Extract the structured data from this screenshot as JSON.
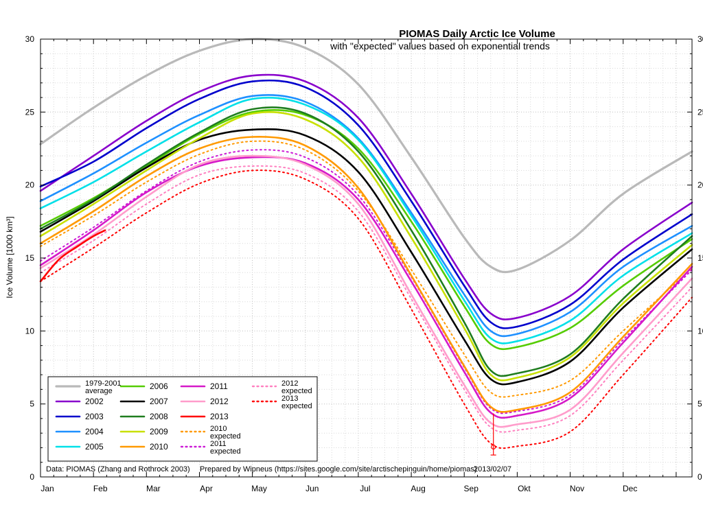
{
  "title": "PIOMAS Daily Arctic Ice Volume",
  "subtitle": "with \"expected\" values based on exponential trends",
  "footer": {
    "left": "Data: PIOMAS (Zhang and Rothrock 2003)",
    "center": "Prepared by Wipneus (https://sites.google.com/site/arctischepinguin/home/piomas)",
    "right": "2013/02/07"
  },
  "chart_data": {
    "type": "line",
    "title": "PIOMAS Daily Arctic Ice Volume",
    "subtitle": "with \"expected\" values based on exponential trends",
    "xlabel": "",
    "ylabel": "Ice Volume [1000 km³]",
    "ylim": [
      0,
      30
    ],
    "y_ticks": [
      0,
      5,
      10,
      15,
      20,
      25,
      30
    ],
    "grid": true,
    "legend_position": "inside bottom-left",
    "x_months": [
      "Jan",
      "Feb",
      "Mar",
      "Apr",
      "May",
      "Jun",
      "Jul",
      "Aug",
      "Sep",
      "Okt",
      "Nov",
      "Dec"
    ],
    "x": [
      0,
      1,
      2,
      3,
      4,
      5,
      6,
      7,
      8,
      8.5,
      9,
      10,
      11,
      12.3
    ],
    "series": [
      {
        "name": "1979-2001 average",
        "legend_lines": [
          "1979-2001",
          "average"
        ],
        "color": "#b9b9b9",
        "style": "solid",
        "width": 3.2,
        "values": [
          22.8,
          25.3,
          27.5,
          29.2,
          30.0,
          29.4,
          26.9,
          21.9,
          16.4,
          14.4,
          14.2,
          16.2,
          19.4,
          22.3
        ]
      },
      {
        "name": "2002",
        "legend_lines": [
          "2002"
        ],
        "color": "#8800cc",
        "style": "solid",
        "width": 2.6,
        "values": [
          19.6,
          22.0,
          24.4,
          26.4,
          27.5,
          27.1,
          24.6,
          19.4,
          13.6,
          11.2,
          10.9,
          12.4,
          15.6,
          18.8
        ]
      },
      {
        "name": "2003",
        "legend_lines": [
          "2003"
        ],
        "color": "#0000cc",
        "style": "solid",
        "width": 2.6,
        "values": [
          19.9,
          21.6,
          23.9,
          25.9,
          27.1,
          26.7,
          24.1,
          18.9,
          13.1,
          10.6,
          10.3,
          11.8,
          14.9,
          18.0
        ]
      },
      {
        "name": "2004",
        "legend_lines": [
          "2004"
        ],
        "color": "#1e90ff",
        "style": "solid",
        "width": 2.6,
        "values": [
          18.9,
          20.8,
          22.9,
          24.8,
          26.1,
          25.7,
          23.2,
          18.1,
          12.5,
          10.0,
          9.8,
          11.3,
          14.4,
          17.2
        ]
      },
      {
        "name": "2005",
        "legend_lines": [
          "2005"
        ],
        "color": "#00e0e8",
        "style": "solid",
        "width": 2.6,
        "values": [
          18.4,
          20.2,
          22.3,
          24.3,
          25.9,
          25.5,
          23.1,
          17.9,
          12.1,
          9.5,
          9.3,
          10.7,
          13.8,
          16.7
        ]
      },
      {
        "name": "2006",
        "legend_lines": [
          "2006"
        ],
        "color": "#55cc00",
        "style": "solid",
        "width": 2.6,
        "values": [
          17.2,
          19.1,
          21.3,
          23.5,
          25.0,
          24.8,
          22.5,
          17.5,
          11.7,
          9.1,
          8.9,
          10.2,
          13.1,
          16.3
        ]
      },
      {
        "name": "2007",
        "legend_lines": [
          "2007"
        ],
        "color": "#000000",
        "style": "solid",
        "width": 2.6,
        "values": [
          16.8,
          18.9,
          21.2,
          23.1,
          23.8,
          23.4,
          20.9,
          15.4,
          9.4,
          6.7,
          6.5,
          7.9,
          11.6,
          15.6
        ]
      },
      {
        "name": "2008",
        "legend_lines": [
          "2008"
        ],
        "color": "#1f7d1f",
        "style": "solid",
        "width": 2.6,
        "values": [
          17.0,
          19.0,
          21.4,
          23.6,
          25.2,
          24.9,
          22.3,
          16.9,
          10.6,
          7.3,
          7.1,
          8.4,
          12.2,
          16.5
        ]
      },
      {
        "name": "2009",
        "legend_lines": [
          "2009"
        ],
        "color": "#c8e000",
        "style": "solid",
        "width": 2.6,
        "values": [
          16.5,
          18.7,
          21.0,
          23.2,
          24.9,
          24.5,
          21.9,
          16.4,
          10.2,
          7.0,
          6.8,
          8.2,
          11.9,
          15.9
        ]
      },
      {
        "name": "2010",
        "legend_lines": [
          "2010"
        ],
        "color": "#ff9900",
        "style": "solid",
        "width": 2.6,
        "values": [
          16.0,
          18.2,
          20.6,
          22.5,
          23.3,
          22.7,
          19.8,
          13.8,
          7.6,
          4.8,
          4.6,
          5.8,
          9.6,
          14.6
        ]
      },
      {
        "name": "2011",
        "legend_lines": [
          "2011"
        ],
        "color": "#d619c8",
        "style": "solid",
        "width": 2.6,
        "values": [
          14.5,
          16.9,
          19.5,
          21.3,
          21.9,
          21.5,
          19.0,
          13.4,
          7.2,
          4.4,
          4.2,
          5.4,
          9.2,
          14.4
        ]
      },
      {
        "name": "2012",
        "legend_lines": [
          "2012"
        ],
        "color": "#ff9ccb",
        "style": "solid",
        "width": 2.6,
        "values": [
          14.3,
          16.6,
          19.2,
          21.4,
          22.0,
          21.4,
          18.7,
          12.5,
          6.3,
          3.7,
          3.6,
          4.6,
          8.5,
          13.6
        ]
      },
      {
        "name": "2013",
        "legend_lines": [
          "2013"
        ],
        "color": "#ff0000",
        "style": "solid",
        "width": 2.6,
        "x_own": [
          0,
          0.35,
          0.7,
          1.0,
          1.22
        ],
        "values": [
          13.4,
          14.9,
          15.8,
          16.5,
          16.9
        ]
      },
      {
        "name": "2010 expected",
        "legend_lines": [
          "2010",
          "expected"
        ],
        "color": "#ff9900",
        "style": "dotted",
        "width": 2,
        "values": [
          15.8,
          17.9,
          20.2,
          22.1,
          23.0,
          22.4,
          19.6,
          14.2,
          8.4,
          5.8,
          5.6,
          6.6,
          10.0,
          14.3
        ]
      },
      {
        "name": "2011 expected",
        "legend_lines": [
          "2011",
          "expected"
        ],
        "color": "#cc1ad6",
        "style": "dotted",
        "width": 2,
        "values": [
          14.8,
          17.1,
          19.6,
          21.6,
          22.4,
          21.9,
          19.3,
          13.7,
          7.5,
          4.7,
          4.5,
          5.6,
          9.4,
          14.2
        ]
      },
      {
        "name": "2012 expected",
        "legend_lines": [
          "2012",
          "expected"
        ],
        "color": "#ff80c0",
        "style": "dotted",
        "width": 2,
        "values": [
          14.0,
          16.2,
          18.7,
          20.7,
          21.3,
          20.8,
          18.2,
          12.2,
          6.0,
          3.4,
          3.2,
          4.2,
          8.0,
          13.0
        ]
      },
      {
        "name": "2013 expected",
        "legend_lines": [
          "2013",
          "expected"
        ],
        "color": "#ff0000",
        "style": "dotted",
        "width": 2,
        "values": [
          13.4,
          15.7,
          18.1,
          20.1,
          21.0,
          20.4,
          17.7,
          11.5,
          5.0,
          2.3,
          2.1,
          3.1,
          7.0,
          12.3
        ]
      }
    ],
    "draw_order": [
      0,
      13,
      14,
      15,
      16,
      1,
      2,
      3,
      4,
      5,
      6,
      7,
      8,
      9,
      10,
      11,
      12
    ],
    "legend_columns": [
      [
        0,
        1,
        2,
        3,
        4
      ],
      [
        5,
        6,
        7,
        8,
        9
      ],
      [
        10,
        11,
        12,
        13,
        14
      ],
      [
        15,
        16
      ]
    ],
    "annotation": {
      "type": "errorbar",
      "x": 8.55,
      "top": 4.35,
      "bottom": 1.5,
      "point": 2.05,
      "color": "#ff0000"
    }
  }
}
